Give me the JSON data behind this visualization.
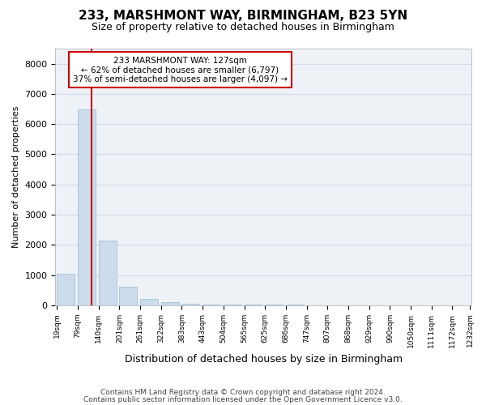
{
  "title": "233, MARSHMONT WAY, BIRMINGHAM, B23 5YN",
  "subtitle": "Size of property relative to detached houses in Birmingham",
  "xlabel": "Distribution of detached houses by size in Birmingham",
  "ylabel": "Number of detached properties",
  "property_size": 127,
  "annotation_line1": "233 MARSHMONT WAY: 127sqm",
  "annotation_line2": "← 62% of detached houses are smaller (6,797)",
  "annotation_line3": "37% of semi-detached houses are larger (4,097) →",
  "footnote1": "Contains HM Land Registry data © Crown copyright and database right 2024.",
  "footnote2": "Contains public sector information licensed under the Open Government Licence v3.0.",
  "bar_color": "#ccdcec",
  "bar_edge_color": "#99bbcc",
  "line_color": "#cc0000",
  "annotation_box_edgecolor": "#cc0000",
  "ylim": [
    0,
    8500
  ],
  "yticks": [
    0,
    1000,
    2000,
    3000,
    4000,
    5000,
    6000,
    7000,
    8000
  ],
  "bin_edges": [
    19,
    79,
    140,
    201,
    261,
    322,
    383,
    443,
    504,
    565,
    625,
    686,
    747,
    807,
    868,
    929,
    990,
    1050,
    1111,
    1172,
    1232
  ],
  "bar_labels": [
    "19sqm",
    "79sqm",
    "140sqm",
    "201sqm",
    "261sqm",
    "322sqm",
    "383sqm",
    "443sqm",
    "504sqm",
    "565sqm",
    "625sqm",
    "686sqm",
    "747sqm",
    "807sqm",
    "868sqm",
    "929sqm",
    "990sqm",
    "1050sqm",
    "1111sqm",
    "1172sqm",
    "1232sqm"
  ],
  "counts": [
    1050,
    6500,
    2150,
    600,
    220,
    100,
    60,
    35,
    20,
    15,
    12,
    10,
    8,
    6,
    5,
    4,
    3,
    3,
    2,
    2
  ],
  "grid_color": "#d0dce8",
  "background_color": "#eef2f7"
}
